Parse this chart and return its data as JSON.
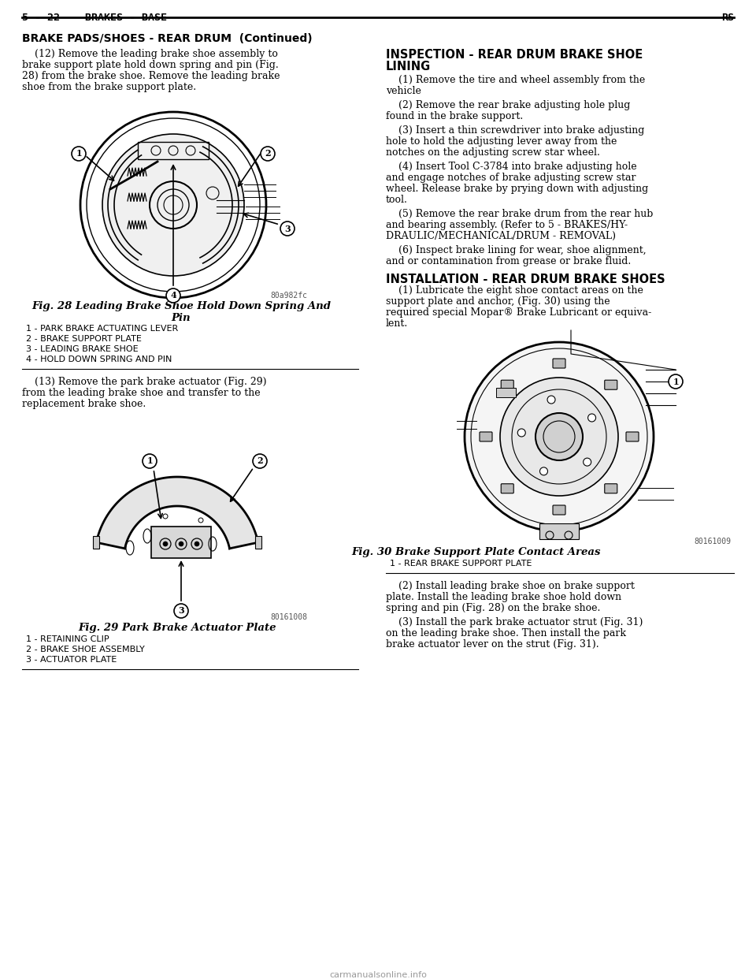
{
  "page_header_left": "5 - 22    BRAKES - BASE",
  "page_header_right": "RS",
  "section_title": "BRAKE PADS/SHOES - REAR DRUM  (Continued)",
  "left_col": {
    "para1_lines": [
      "    (12) Remove the leading brake shoe assembly to",
      "brake support plate hold down spring and pin (Fig.",
      "28) from the brake shoe. Remove the leading brake",
      "shoe from the brake support plate."
    ],
    "fig28_caption_line1": "Fig. 28 Leading Brake Shoe Hold Down Spring And",
    "fig28_caption_line2": "Pin",
    "fig28_labels": [
      "1 - PARK BRAKE ACTUATING LEVER",
      "2 - BRAKE SUPPORT PLATE",
      "3 - LEADING BRAKE SHOE",
      "4 - HOLD DOWN SPRING AND PIN"
    ],
    "fig28_code": "80a982fc",
    "para2_lines": [
      "    (13) Remove the park brake actuator (Fig. 29)",
      "from the leading brake shoe and transfer to the",
      "replacement brake shoe."
    ],
    "fig29_caption": "Fig. 29 Park Brake Actuator Plate",
    "fig29_labels": [
      "1 - RETAINING CLIP",
      "2 - BRAKE SHOE ASSEMBLY",
      "3 - ACTUATOR PLATE"
    ],
    "fig29_code": "80161008"
  },
  "right_col": {
    "section_title1": "INSPECTION - REAR DRUM BRAKE SHOE",
    "section_title2": "LINING",
    "para1_lines": [
      "    (1) Remove the tire and wheel assembly from the",
      "vehicle"
    ],
    "para2_lines": [
      "    (2) Remove the rear brake adjusting hole plug",
      "found in the brake support."
    ],
    "para3_lines": [
      "    (3) Insert a thin screwdriver into brake adjusting",
      "hole to hold the adjusting lever away from the",
      "notches on the adjusting screw star wheel."
    ],
    "para4_lines": [
      "    (4) Insert Tool C-3784 into brake adjusting hole",
      "and engage notches of brake adjusting screw star",
      "wheel. Release brake by prying down with adjusting",
      "tool."
    ],
    "para5_lines": [
      "    (5) Remove the rear brake drum from the rear hub",
      "and bearing assembly. (Refer to 5 - BRAKES/HY-",
      "DRAULIC/MECHANICAL/DRUM - REMOVAL)"
    ],
    "para6_lines": [
      "    (6) Inspect brake lining for wear, shoe alignment,",
      "and or contamination from grease or brake fluid."
    ],
    "section_title3": "INSTALLATION - REAR DRUM BRAKE SHOES",
    "para7_lines": [
      "    (1) Lubricate the eight shoe contact areas on the",
      "support plate and anchor, (Fig. 30) using the",
      "required special Mopar® Brake Lubricant or equiva-",
      "lent."
    ],
    "fig30_caption": "Fig. 30 Brake Support Plate Contact Areas",
    "fig30_labels": [
      "1 - REAR BRAKE SUPPORT PLATE"
    ],
    "fig30_code": "80161009",
    "para8_lines": [
      "    (2) Install leading brake shoe on brake support",
      "plate. Install the leading brake shoe hold down",
      "spring and pin (Fig. 28) on the brake shoe."
    ],
    "para9_lines": [
      "    (3) Install the park brake actuator strut (Fig. 31)",
      "on the leading brake shoe. Then install the park",
      "brake actuator lever on the strut (Fig. 31)."
    ]
  },
  "bg_color": "#ffffff",
  "text_color": "#000000"
}
